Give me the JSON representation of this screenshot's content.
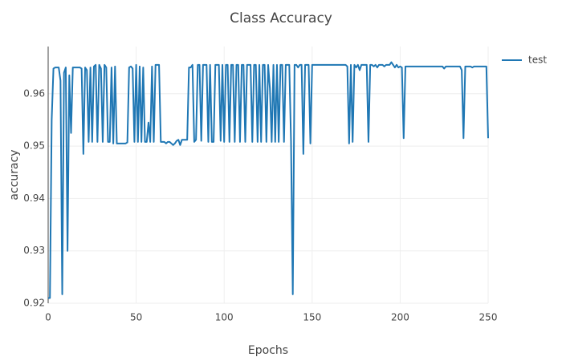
{
  "chart_data": {
    "type": "line",
    "title": "Class Accuracy",
    "x_label": "Epochs",
    "y_label": "accuracy",
    "xlim": [
      0,
      250
    ],
    "ylim": [
      0.92,
      0.969
    ],
    "xticks": [
      0,
      50,
      100,
      150,
      200,
      250
    ],
    "yticks": [
      0.92,
      0.93,
      0.94,
      0.95,
      0.96
    ],
    "grid": true,
    "legend": "top-right",
    "x": [
      0,
      1,
      2,
      3,
      4,
      5,
      6,
      7,
      8,
      9,
      10,
      11,
      12,
      13,
      14,
      15,
      16,
      17,
      18,
      19,
      20,
      21,
      22,
      23,
      24,
      25,
      26,
      27,
      28,
      29,
      30,
      31,
      32,
      33,
      34,
      35,
      36,
      37,
      38,
      39,
      40,
      41,
      42,
      43,
      44,
      45,
      46,
      47,
      48,
      49,
      50,
      51,
      52,
      53,
      54,
      55,
      56,
      57,
      58,
      59,
      60,
      61,
      62,
      63,
      64,
      65,
      66,
      67,
      68,
      69,
      70,
      71,
      72,
      73,
      74,
      75,
      76,
      77,
      78,
      79,
      80,
      81,
      82,
      83,
      84,
      85,
      86,
      87,
      88,
      89,
      90,
      91,
      92,
      93,
      94,
      95,
      96,
      97,
      98,
      99,
      100,
      101,
      102,
      103,
      104,
      105,
      106,
      107,
      108,
      109,
      110,
      111,
      112,
      113,
      114,
      115,
      116,
      117,
      118,
      119,
      120,
      121,
      122,
      123,
      124,
      125,
      126,
      127,
      128,
      129,
      130,
      131,
      132,
      133,
      134,
      135,
      136,
      137,
      138,
      139,
      140,
      141,
      142,
      143,
      144,
      145,
      146,
      147,
      148,
      149,
      150,
      151,
      152,
      153,
      154,
      155,
      156,
      157,
      158,
      159,
      160,
      161,
      162,
      163,
      164,
      165,
      166,
      167,
      168,
      169,
      170,
      171,
      172,
      173,
      174,
      175,
      176,
      177,
      178,
      179,
      180,
      181,
      182,
      183,
      184,
      185,
      186,
      187,
      188,
      189,
      190,
      191,
      192,
      193,
      194,
      195,
      196,
      197,
      198,
      199,
      200,
      201,
      202,
      203,
      204,
      205,
      206,
      207,
      208,
      209,
      210,
      211,
      212,
      213,
      214,
      215,
      216,
      217,
      218,
      219,
      220,
      221,
      222,
      223,
      224,
      225,
      226,
      227,
      228,
      229,
      230,
      231,
      232,
      233,
      234,
      235,
      236,
      237,
      238,
      239,
      240,
      241,
      242,
      243,
      244,
      245,
      246,
      247,
      248,
      249,
      250
    ],
    "series": [
      {
        "name": "test",
        "color": "#1f77b4",
        "values": [
          0.921,
          0.921,
          0.955,
          0.9648,
          0.965,
          0.965,
          0.965,
          0.9625,
          0.9217,
          0.964,
          0.965,
          0.93,
          0.9635,
          0.9525,
          0.965,
          0.965,
          0.965,
          0.965,
          0.965,
          0.9648,
          0.9485,
          0.965,
          0.9645,
          0.9508,
          0.965,
          0.9508,
          0.9652,
          0.9655,
          0.9508,
          0.9655,
          0.9648,
          0.9508,
          0.9655,
          0.965,
          0.9508,
          0.9508,
          0.965,
          0.9505,
          0.9652,
          0.9505,
          0.9505,
          0.9505,
          0.9505,
          0.9505,
          0.9505,
          0.9507,
          0.965,
          0.9652,
          0.9648,
          0.9508,
          0.9655,
          0.9508,
          0.9652,
          0.9508,
          0.965,
          0.9508,
          0.9508,
          0.9545,
          0.9508,
          0.9652,
          0.9508,
          0.9655,
          0.9655,
          0.9655,
          0.9508,
          0.9508,
          0.9508,
          0.9505,
          0.9508,
          0.9508,
          0.9505,
          0.9502,
          0.9505,
          0.951,
          0.9512,
          0.9502,
          0.9512,
          0.9512,
          0.9512,
          0.9512,
          0.965,
          0.965,
          0.9655,
          0.9508,
          0.9512,
          0.9655,
          0.9655,
          0.951,
          0.9655,
          0.9655,
          0.9655,
          0.9508,
          0.9655,
          0.9508,
          0.9508,
          0.9655,
          0.9655,
          0.9655,
          0.951,
          0.9655,
          0.9508,
          0.9655,
          0.9655,
          0.9508,
          0.9655,
          0.9655,
          0.9508,
          0.9655,
          0.9655,
          0.9508,
          0.9655,
          0.9655,
          0.9508,
          0.9655,
          0.9655,
          0.9655,
          0.9508,
          0.9655,
          0.9655,
          0.9508,
          0.9655,
          0.9508,
          0.9655,
          0.9655,
          0.9508,
          0.9655,
          0.961,
          0.9508,
          0.9655,
          0.9508,
          0.9655,
          0.9508,
          0.9655,
          0.9655,
          0.9508,
          0.9655,
          0.9655,
          0.9655,
          0.9508,
          0.9217,
          0.9655,
          0.9655,
          0.965,
          0.9655,
          0.9655,
          0.9485,
          0.9655,
          0.9655,
          0.9655,
          0.9505,
          0.9655,
          0.9655,
          0.9655,
          0.9655,
          0.9655,
          0.9655,
          0.9655,
          0.9655,
          0.9655,
          0.9655,
          0.9655,
          0.9655,
          0.9655,
          0.9655,
          0.9655,
          0.9655,
          0.9655,
          0.9655,
          0.9655,
          0.9655,
          0.9652,
          0.9505,
          0.9655,
          0.9508,
          0.9655,
          0.965,
          0.9655,
          0.9645,
          0.9655,
          0.9655,
          0.9655,
          0.9655,
          0.9508,
          0.9655,
          0.9655,
          0.9652,
          0.9655,
          0.965,
          0.9655,
          0.9655,
          0.9655,
          0.9652,
          0.9655,
          0.9655,
          0.9655,
          0.966,
          0.9655,
          0.965,
          0.9655,
          0.965,
          0.9652,
          0.965,
          0.9515,
          0.9652,
          0.9652,
          0.9652,
          0.9652,
          0.9652,
          0.9652,
          0.9652,
          0.9652,
          0.9652,
          0.9652,
          0.9652,
          0.9652,
          0.9652,
          0.9652,
          0.9652,
          0.9652,
          0.9652,
          0.9652,
          0.9652,
          0.9652,
          0.9652,
          0.9652,
          0.9648,
          0.9652,
          0.9652,
          0.9652,
          0.9652,
          0.9652,
          0.9652,
          0.9652,
          0.9652,
          0.9652,
          0.9645,
          0.9515,
          0.9652,
          0.9652,
          0.9652,
          0.9652,
          0.965,
          0.9652,
          0.9652,
          0.9652,
          0.9652,
          0.9652,
          0.9652,
          0.9652,
          0.9652,
          0.9515
        ]
      }
    ]
  }
}
